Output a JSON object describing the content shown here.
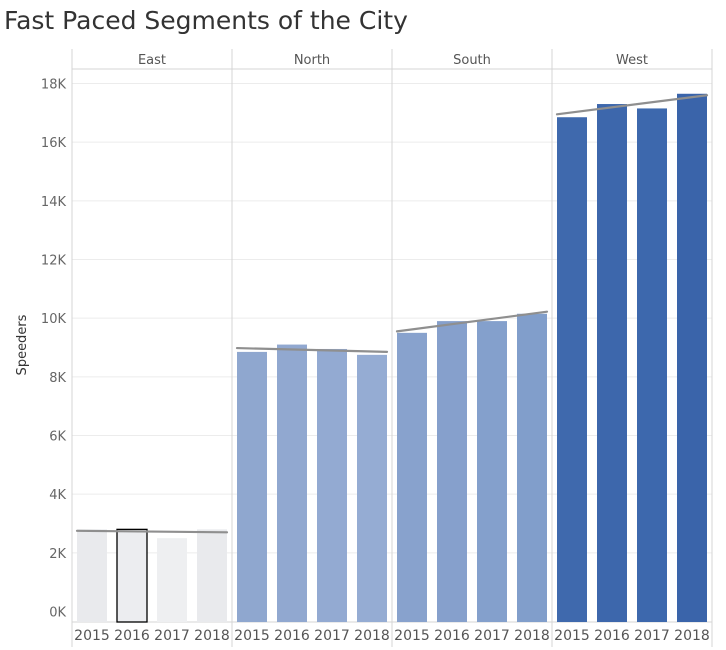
{
  "chart_data": {
    "type": "bar",
    "title": "Fast Paced Segments of the City",
    "ylabel": "Speeders",
    "xlabel": "",
    "ylim": [
      -500,
      18500
    ],
    "y_ticks": [
      0,
      2000,
      4000,
      6000,
      8000,
      10000,
      12000,
      14000,
      16000,
      18000
    ],
    "y_tick_labels": [
      "0K",
      "2K",
      "4K",
      "6K",
      "8K",
      "10K",
      "12K",
      "14K",
      "16K",
      "18K"
    ],
    "grid": true,
    "categories": [
      "2015",
      "2016",
      "2017",
      "2018"
    ],
    "highlighted": {
      "panel": "East",
      "category": "2016"
    },
    "trend_lines": true,
    "panels": [
      {
        "name": "East",
        "values": [
          2800,
          2800,
          2500,
          2800
        ],
        "colors": [
          "#e9eaed",
          "#ecedf0",
          "#eeeff1",
          "#e9eaed"
        ],
        "trend": [
          2750,
          2700
        ]
      },
      {
        "name": "North",
        "values": [
          8850,
          9100,
          8950,
          8750
        ],
        "colors": [
          "#8fa7cf",
          "#91a8d0",
          "#93aad2",
          "#95acd3"
        ],
        "trend": [
          8980,
          8850
        ]
      },
      {
        "name": "South",
        "values": [
          9500,
          9900,
          9900,
          10150
        ],
        "colors": [
          "#88a2cd",
          "#86a0cc",
          "#84a0cc",
          "#819ecb"
        ],
        "trend": [
          9550,
          10220
        ]
      },
      {
        "name": "West",
        "values": [
          16850,
          17300,
          17150,
          17650
        ],
        "colors": [
          "#3f69ad",
          "#3d67ac",
          "#3d68ad",
          "#3a64aa"
        ],
        "trend": [
          16950,
          17600
        ]
      }
    ]
  }
}
